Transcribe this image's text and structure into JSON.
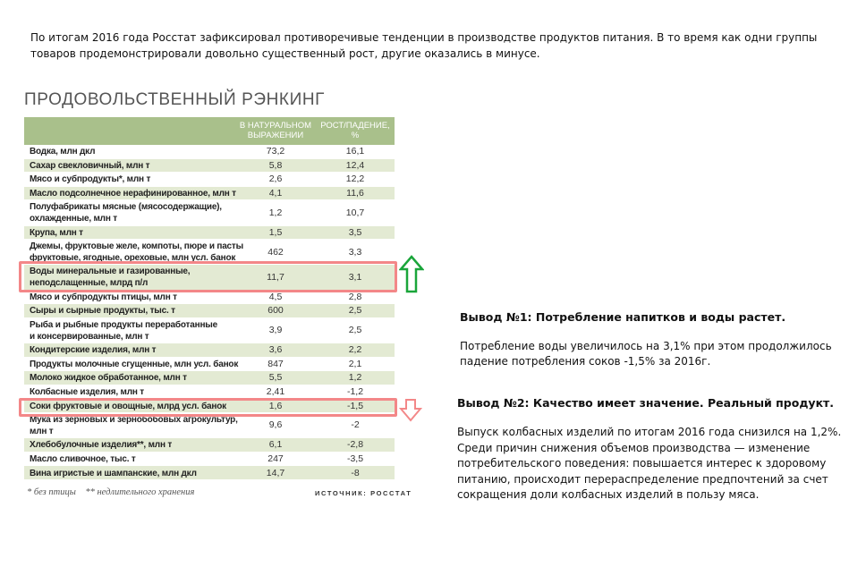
{
  "intro": "По итогам 2016 года Росстат зафиксировал противоречивые тенденции  в производстве продуктов питания. В то время как одни группы товаров продемонстрировали довольно существенный рост, другие оказались в минусе.",
  "ranking": {
    "title": "ПРОДОВОЛЬСТВЕННЫЙ РЭНКИНГ",
    "columns": [
      "В НАТУРАЛЬНОМ\nВЫРАЖЕНИИ",
      "РОСТ/ПАДЕНИЕ,\n%"
    ],
    "header_color": "#a9c08b",
    "alt_row_color": "#e3ead3",
    "rows": [
      {
        "label": "Водка, млн дкл",
        "value": "73,2",
        "change": "16,1"
      },
      {
        "label": "Сахар свекловичный, млн т",
        "value": "5,8",
        "change": "12,4"
      },
      {
        "label": "Мясо и субпродукты*, млн т",
        "value": "2,6",
        "change": "12,2"
      },
      {
        "label": "Масло подсолнечное нерафинированное, млн т",
        "value": "4,1",
        "change": "11,6"
      },
      {
        "label": "Полуфабрикаты мясные (мясосодержащие),\nохлажденные, млн т",
        "value": "1,2",
        "change": "10,7"
      },
      {
        "label": "Крупа, млн т",
        "value": "1,5",
        "change": "3,5"
      },
      {
        "label": "Джемы, фруктовые желе, компоты, пюре и пасты\nфруктовые, ягодные, ореховые, млн усл. банок",
        "value": "462",
        "change": "3,3"
      },
      {
        "label": "Воды минеральные и газированные,\nнеподслащенные, млрд п/л",
        "value": "11,7",
        "change": "3,1",
        "highlight": "up"
      },
      {
        "label": "Мясо и субпродукты птицы, млн т",
        "value": "4,5",
        "change": "2,8"
      },
      {
        "label": "Сыры и сырные продукты, тыс. т",
        "value": "600",
        "change": "2,5"
      },
      {
        "label": "Рыба и рыбные продукты переработанные\nи консервированные, млн т",
        "value": "3,9",
        "change": "2,5"
      },
      {
        "label": "Кондитерские изделия, млн т",
        "value": "3,6",
        "change": "2,2"
      },
      {
        "label": "Продукты молочные сгущенные, млн усл. банок",
        "value": "847",
        "change": "2,1"
      },
      {
        "label": "Молоко жидкое обработанное, млн т",
        "value": "5,5",
        "change": "1,2"
      },
      {
        "label": "Колбасные изделия, млн т",
        "value": "2,41",
        "change": "-1,2"
      },
      {
        "label": "Соки фруктовые и овощные, млрд усл. банок",
        "value": "1,6",
        "change": "-1,5",
        "highlight": "down"
      },
      {
        "label": "Мука из зерновых и зернобобовых агрокультур,\nмлн т",
        "value": "9,6",
        "change": "-2"
      },
      {
        "label": "Хлебобулочные изделия**, млн т",
        "value": "6,1",
        "change": "-2,8"
      },
      {
        "label": "Масло сливочное, тыс. т",
        "value": "247",
        "change": "-3,5"
      },
      {
        "label": "Вина игристые и шампанские, млн дкл",
        "value": "14,7",
        "change": "-8"
      }
    ],
    "footnote": "* без птицы    ** недлительного хранения",
    "source": "ИСТОЧНИК: РОССТАТ",
    "highlight_color": "#f38788",
    "up_arrow_color": "#1aa53a",
    "down_arrow_color": "#f38788"
  },
  "conclusion1": {
    "title": "Вывод №1: Потребление  напитков и воды растет.",
    "text": "Потребление воды увеличилось на 3,1% при этом продолжилось падение  потребления соков -1,5% за 2016г."
  },
  "conclusion2": {
    "title": "Вывод №2: Качество имеет значение. Реальный продукт.",
    "text": "Выпуск  колбасных изделий  по итогам 2016 года снизился  на 1,2%. Среди причин  снижения  объемов производства — изменение потребительского  поведения: повышается интерес к здоровому питанию, происходит перераспределение предпочтений  за счет сокращения доли колбасных изделий в пользу мяса."
  }
}
